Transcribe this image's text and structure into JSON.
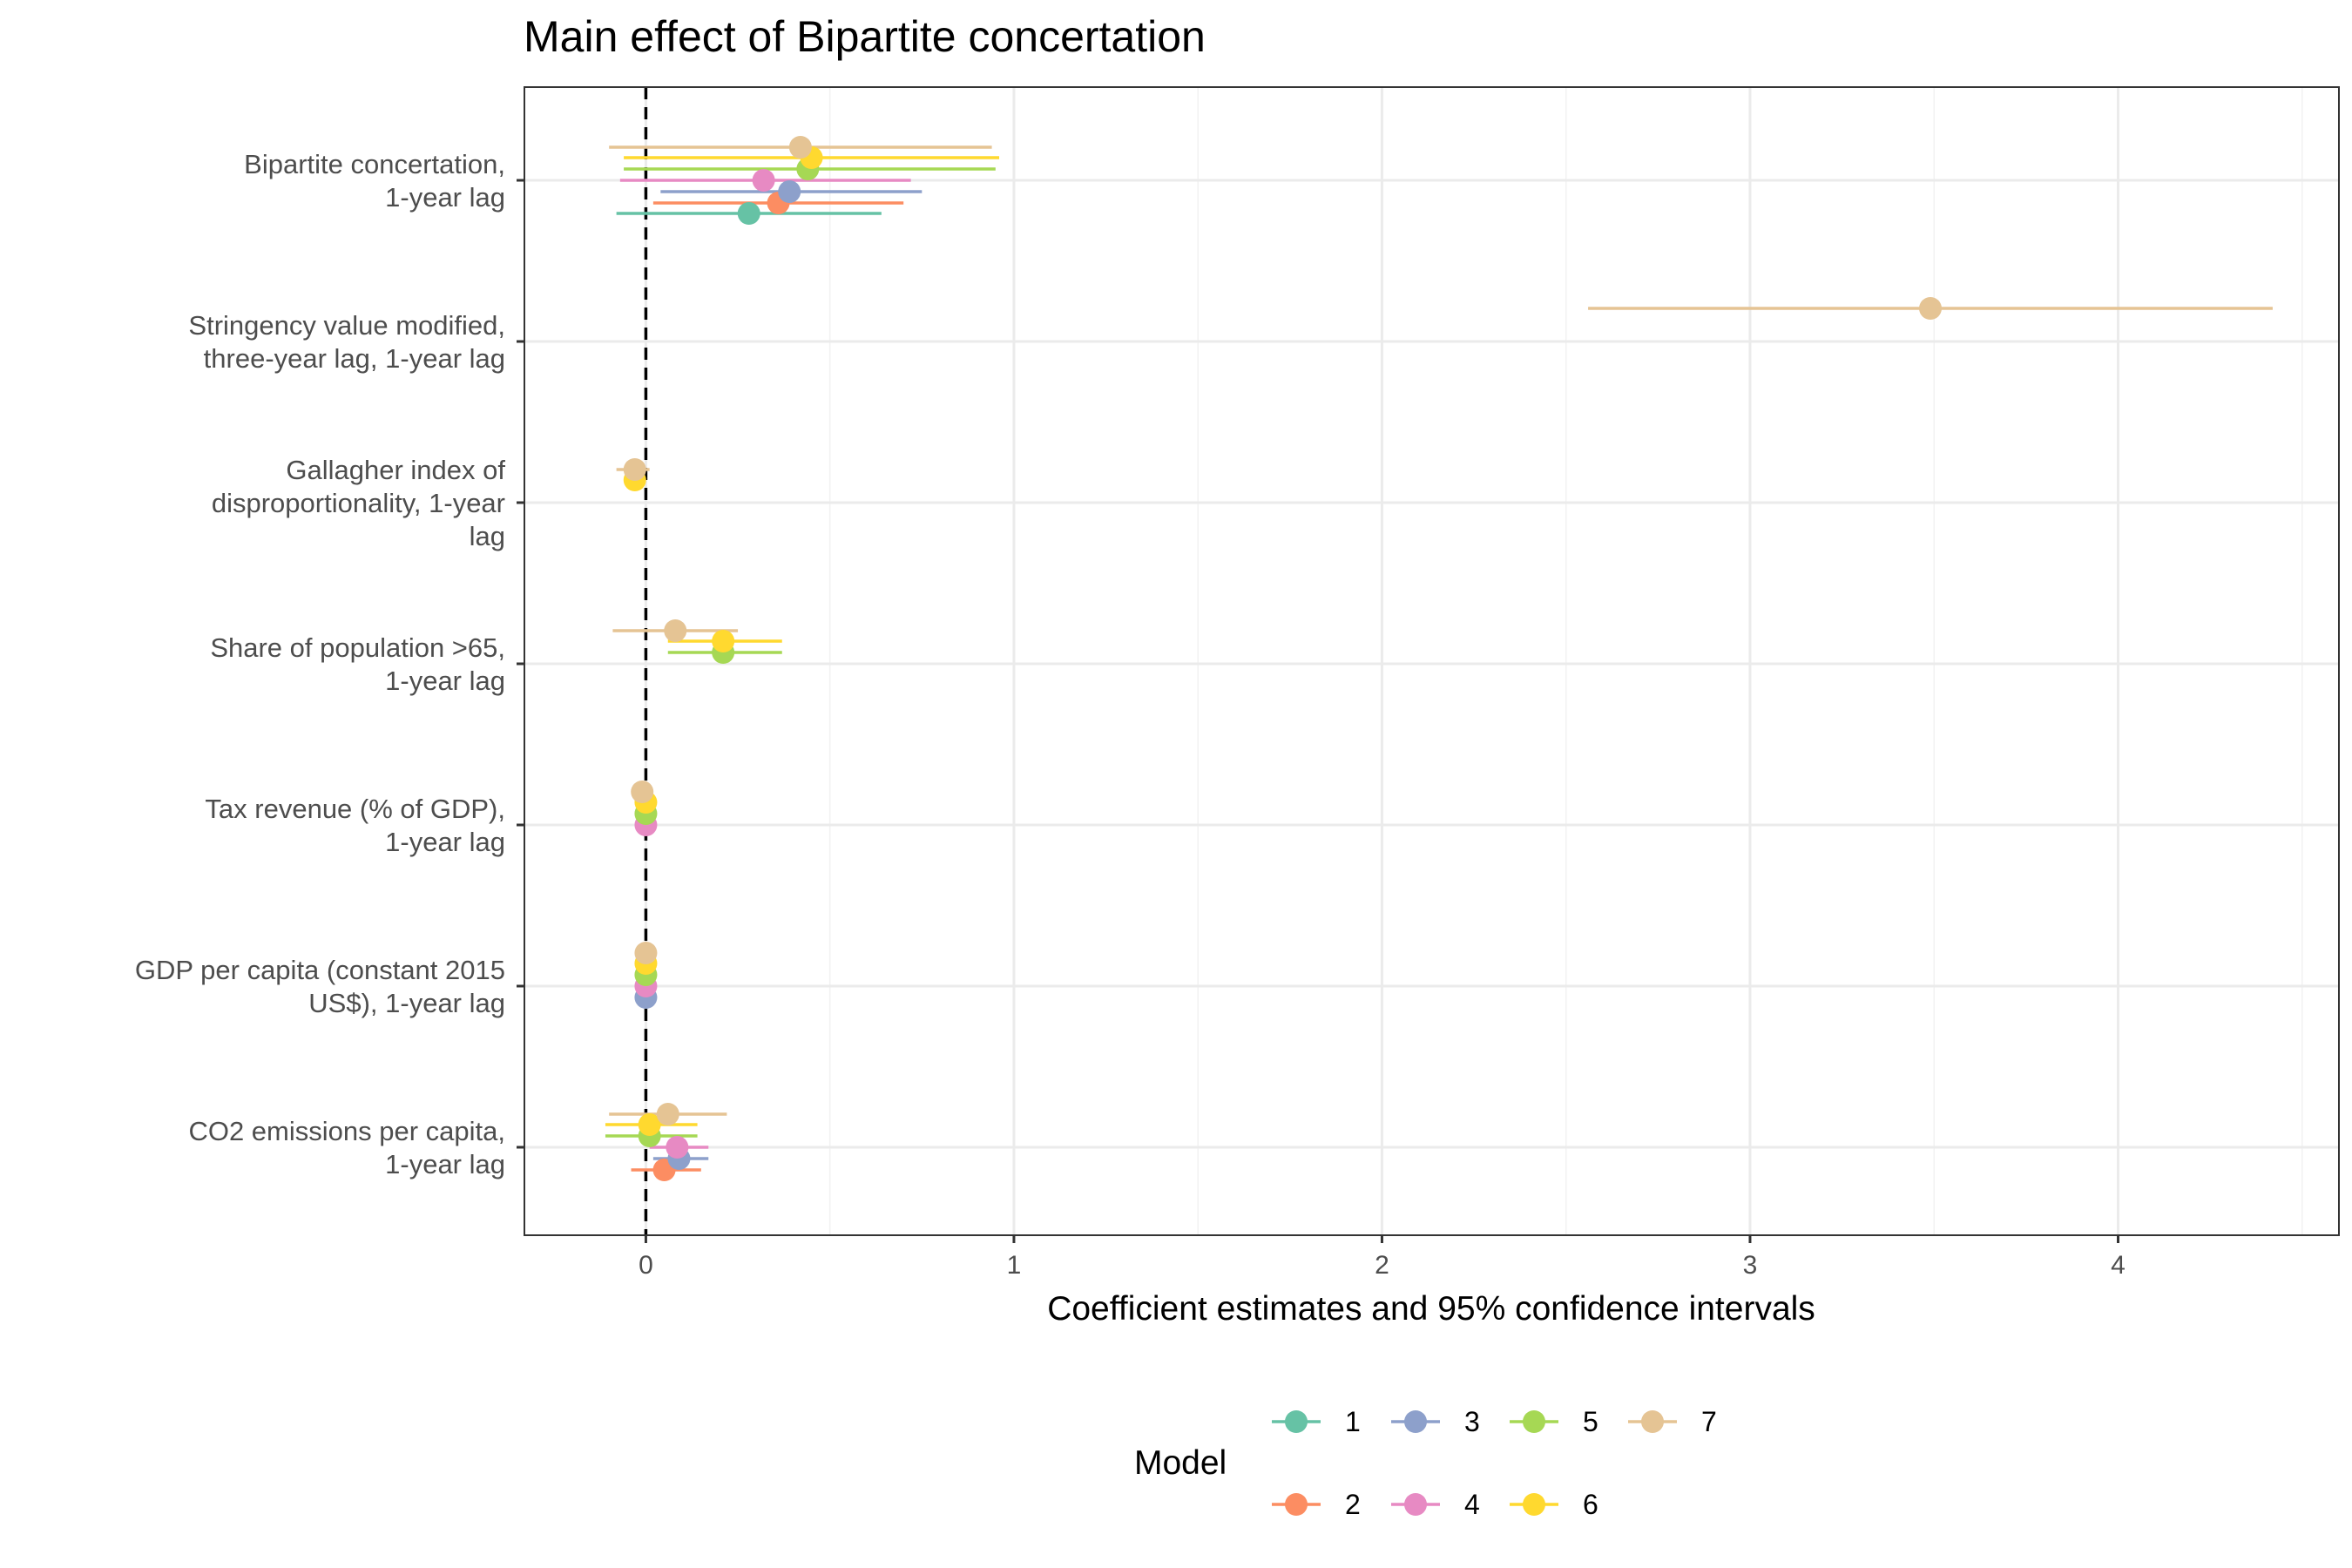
{
  "chart_data": {
    "type": "scatter",
    "subtype": "coefficient-plot",
    "title": "Main effect of Bipartite concertation",
    "xlabel": "Coefficient estimates and 95% confidence intervals",
    "xlim": [
      -0.33,
      4.6
    ],
    "xticks": [
      0,
      1,
      2,
      3,
      4
    ],
    "grid": true,
    "reference_line_x": 0,
    "categories": [
      [
        "Bipartite concertation,",
        "1-year lag"
      ],
      [
        "Stringency value modified,",
        "three-year lag, 1-year lag"
      ],
      [
        "Gallagher index of",
        "disproportionality, 1-year",
        "lag"
      ],
      [
        "Share of population >65,",
        "1-year lag"
      ],
      [
        "Tax revenue (% of GDP),",
        "1-year lag"
      ],
      [
        "GDP per capita (constant 2015",
        "US$), 1-year lag"
      ],
      [
        "CO2 emissions per capita,",
        "1-year lag"
      ]
    ],
    "legend": {
      "title": "Model",
      "placement": "bottom"
    },
    "series": [
      {
        "name": "1",
        "color": "#66C2A5",
        "points": [
          {
            "cat": 0,
            "est": 0.28,
            "lo": -0.08,
            "hi": 0.64
          }
        ]
      },
      {
        "name": "2",
        "color": "#FC8D62",
        "points": [
          {
            "cat": 0,
            "est": 0.36,
            "lo": 0.02,
            "hi": 0.7
          },
          {
            "cat": 6,
            "est": 0.05,
            "lo": -0.04,
            "hi": 0.15
          }
        ]
      },
      {
        "name": "3",
        "color": "#8DA0CB",
        "points": [
          {
            "cat": 0,
            "est": 0.39,
            "lo": 0.04,
            "hi": 0.75
          },
          {
            "cat": 5,
            "est": 0.0,
            "lo": -0.005,
            "hi": 0.005
          },
          {
            "cat": 6,
            "est": 0.09,
            "lo": 0.02,
            "hi": 0.17
          }
        ]
      },
      {
        "name": "4",
        "color": "#E78AC3",
        "points": [
          {
            "cat": 0,
            "est": 0.32,
            "lo": -0.07,
            "hi": 0.72
          },
          {
            "cat": 4,
            "est": 0.0,
            "lo": -0.005,
            "hi": 0.005
          },
          {
            "cat": 5,
            "est": 0.0,
            "lo": -0.005,
            "hi": 0.005
          },
          {
            "cat": 6,
            "est": 0.085,
            "lo": 0.01,
            "hi": 0.17
          }
        ]
      },
      {
        "name": "5",
        "color": "#A6D854",
        "points": [
          {
            "cat": 0,
            "est": 0.44,
            "lo": -0.06,
            "hi": 0.95
          },
          {
            "cat": 3,
            "est": 0.21,
            "lo": 0.06,
            "hi": 0.37
          },
          {
            "cat": 4,
            "est": 0.0,
            "lo": -0.005,
            "hi": 0.005
          },
          {
            "cat": 5,
            "est": 0.0,
            "lo": -0.005,
            "hi": 0.005
          },
          {
            "cat": 6,
            "est": 0.01,
            "lo": -0.11,
            "hi": 0.14
          }
        ]
      },
      {
        "name": "6",
        "color": "#FFD92F",
        "points": [
          {
            "cat": 0,
            "est": 0.45,
            "lo": -0.06,
            "hi": 0.96
          },
          {
            "cat": 2,
            "est": -0.03,
            "lo": -0.05,
            "hi": -0.01
          },
          {
            "cat": 3,
            "est": 0.21,
            "lo": 0.06,
            "hi": 0.37
          },
          {
            "cat": 4,
            "est": 0.0,
            "lo": -0.005,
            "hi": 0.005
          },
          {
            "cat": 5,
            "est": 0.0,
            "lo": -0.005,
            "hi": 0.005
          },
          {
            "cat": 6,
            "est": 0.01,
            "lo": -0.11,
            "hi": 0.14
          }
        ]
      },
      {
        "name": "7",
        "color": "#E5C494",
        "points": [
          {
            "cat": 0,
            "est": 0.42,
            "lo": -0.1,
            "hi": 0.94
          },
          {
            "cat": 1,
            "est": 3.49,
            "lo": 2.56,
            "hi": 4.42
          },
          {
            "cat": 2,
            "est": -0.03,
            "lo": -0.08,
            "hi": 0.01
          },
          {
            "cat": 3,
            "est": 0.08,
            "lo": -0.09,
            "hi": 0.25
          },
          {
            "cat": 4,
            "est": -0.01,
            "lo": -0.015,
            "hi": 0.0
          },
          {
            "cat": 5,
            "est": 0.0,
            "lo": -0.005,
            "hi": 0.005
          },
          {
            "cat": 6,
            "est": 0.06,
            "lo": -0.1,
            "hi": 0.22
          }
        ]
      }
    ]
  }
}
